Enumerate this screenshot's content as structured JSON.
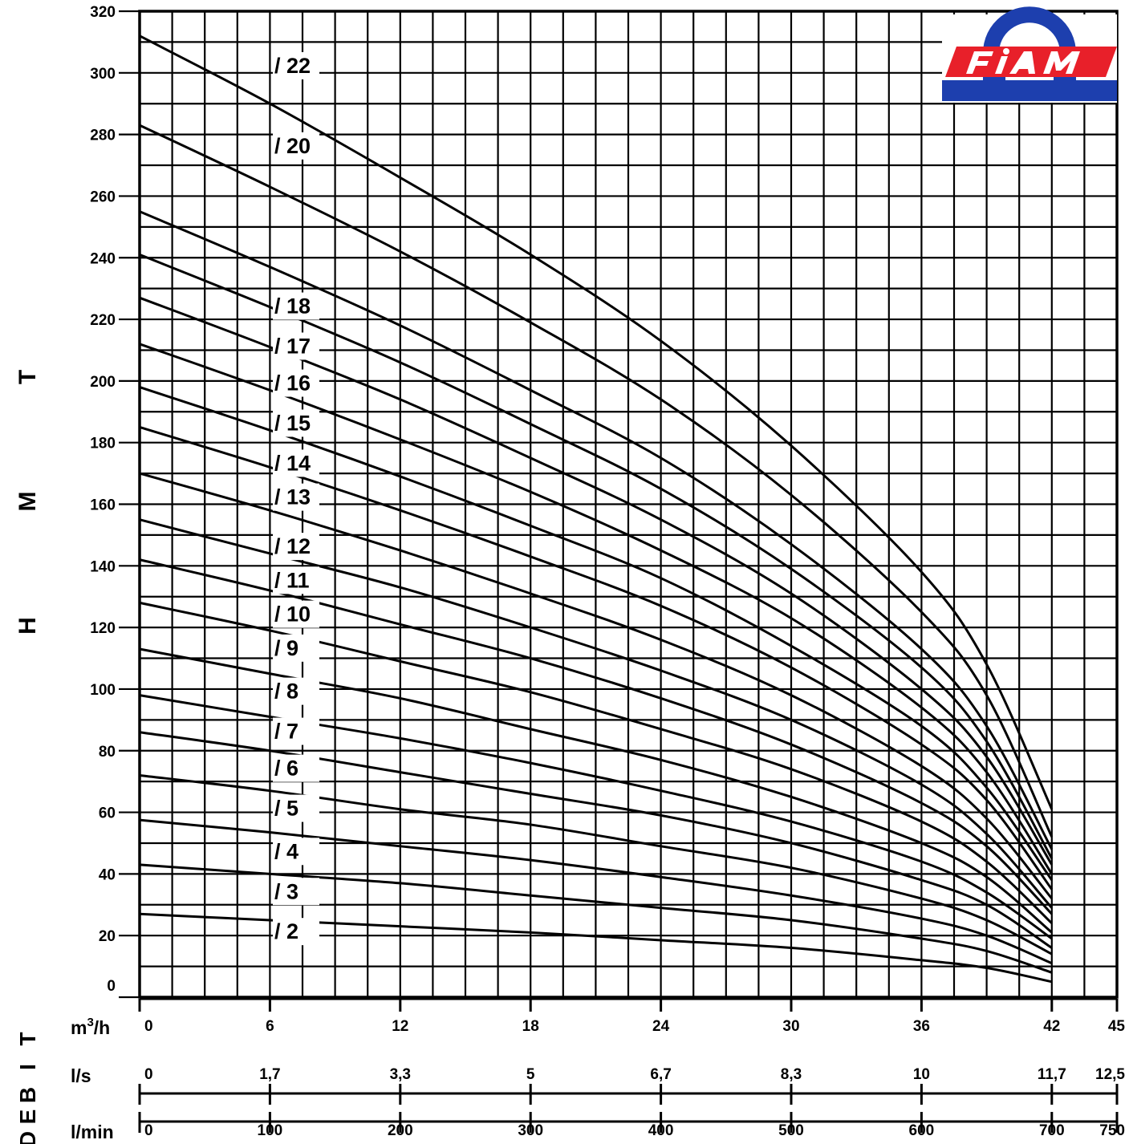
{
  "chart_data": {
    "type": "line",
    "title": "",
    "ylabel": "H  M  T",
    "xlabel": "D E B I T",
    "ylim": [
      0,
      320
    ],
    "xlim": [
      0,
      45
    ],
    "y_ticks": [
      "0",
      "20",
      "40",
      "60",
      "80",
      "100",
      "120",
      "140",
      "160",
      "180",
      "200",
      "220",
      "240",
      "260",
      "280",
      "300",
      "320"
    ],
    "x_axes": [
      {
        "unit": "m³/h",
        "unit_base": "m",
        "unit_sup": "3",
        "unit_tail": "/h",
        "ticks": [
          {
            "at": 0,
            "label": "0"
          },
          {
            "at": 6,
            "label": "6"
          },
          {
            "at": 12,
            "label": "12"
          },
          {
            "at": 18,
            "label": "18"
          },
          {
            "at": 24,
            "label": "24"
          },
          {
            "at": 30,
            "label": "30"
          },
          {
            "at": 36,
            "label": "36"
          },
          {
            "at": 42,
            "label": "42"
          },
          {
            "at": 45,
            "label": "45"
          }
        ]
      },
      {
        "unit": "l/s",
        "ticks": [
          {
            "at": 0,
            "label": "0"
          },
          {
            "at": 6,
            "label": "1,7"
          },
          {
            "at": 12,
            "label": "3,3"
          },
          {
            "at": 18,
            "label": "5"
          },
          {
            "at": 24,
            "label": "6,7"
          },
          {
            "at": 30,
            "label": "8,3"
          },
          {
            "at": 36,
            "label": "10"
          },
          {
            "at": 42,
            "label": "11,7"
          },
          {
            "at": 45,
            "label": "12,5"
          }
        ]
      },
      {
        "unit": "l/min",
        "ticks": [
          {
            "at": 0,
            "label": "0"
          },
          {
            "at": 6,
            "label": "100"
          },
          {
            "at": 12,
            "label": "200"
          },
          {
            "at": 18,
            "label": "300"
          },
          {
            "at": 24,
            "label": "400"
          },
          {
            "at": 30,
            "label": "500"
          },
          {
            "at": 36,
            "label": "600"
          },
          {
            "at": 42,
            "label": "700"
          },
          {
            "at": 45,
            "label": "750"
          }
        ]
      }
    ],
    "grid": true,
    "x": [
      0,
      6,
      12,
      18,
      24,
      30,
      36,
      39,
      42
    ],
    "series": [
      {
        "name": "/ 22",
        "values": [
          312,
          290,
          266,
          241,
          213,
          179,
          138,
          108,
          61
        ],
        "label_y": 301
      },
      {
        "name": "/ 20",
        "values": [
          283,
          263,
          242,
          219,
          194,
          163,
          125,
          98,
          52
        ],
        "label_y": 275
      },
      {
        "name": "/ 18",
        "values": [
          255,
          237,
          218,
          197,
          175,
          147,
          113,
          88,
          48
        ],
        "label_y": 223
      },
      {
        "name": "/ 17",
        "values": [
          241,
          224,
          206,
          186,
          165,
          139,
          107,
          83,
          45
        ],
        "label_y": 210
      },
      {
        "name": "/ 16",
        "values": [
          227,
          211,
          194,
          175,
          155,
          131,
          100,
          78,
          43
        ],
        "label_y": 198
      },
      {
        "name": "/ 15",
        "values": [
          212,
          197,
          181,
          164,
          145,
          123,
          94,
          73,
          40
        ],
        "label_y": 185
      },
      {
        "name": "/ 14",
        "values": [
          198,
          184,
          169,
          153,
          136,
          114,
          88,
          68,
          38
        ],
        "label_y": 172
      },
      {
        "name": "/ 13",
        "values": [
          185,
          172,
          158,
          143,
          127,
          107,
          82,
          64,
          35
        ],
        "label_y": 161
      },
      {
        "name": "/ 12",
        "values": [
          170,
          158,
          145,
          131,
          116,
          98,
          75,
          58,
          32
        ],
        "label_y": 145
      },
      {
        "name": "/ 11",
        "values": [
          155,
          144,
          133,
          120,
          106,
          90,
          69,
          53,
          29
        ],
        "label_y": 134
      },
      {
        "name": "/ 10",
        "values": [
          142,
          132,
          121,
          110,
          97,
          82,
          63,
          49,
          27
        ],
        "label_y": 123
      },
      {
        "name": "/ 9",
        "values": [
          128,
          119,
          109,
          99,
          87,
          74,
          57,
          44,
          24
        ],
        "label_y": 112
      },
      {
        "name": "/ 8",
        "values": [
          113,
          105,
          97,
          87,
          77,
          65,
          50,
          39,
          21
        ],
        "label_y": 98
      },
      {
        "name": "/ 7",
        "values": [
          98,
          91,
          84,
          76,
          67,
          57,
          44,
          34,
          19
        ],
        "label_y": 85
      },
      {
        "name": "/ 6",
        "values": [
          86,
          80,
          73,
          66,
          59,
          50,
          38,
          30,
          16
        ],
        "label_y": 73
      },
      {
        "name": "/ 5",
        "values": [
          72,
          67,
          61,
          56,
          49,
          42,
          32,
          25,
          14
        ],
        "label_y": 60
      },
      {
        "name": "/ 4",
        "values": [
          57.5,
          53.5,
          49,
          44.5,
          39,
          33,
          25.5,
          20,
          11
        ],
        "label_y": 46
      },
      {
        "name": "/ 3",
        "values": [
          43,
          40,
          37,
          33,
          29,
          25,
          19,
          15,
          8
        ],
        "label_y": 33
      },
      {
        "name": "/ 2",
        "values": [
          27,
          25,
          23,
          21,
          18.5,
          16,
          12,
          9.5,
          5
        ],
        "label_y": 20
      }
    ],
    "side_labels": {
      "y_letters": [
        "T",
        "M",
        "H"
      ],
      "x_letters": [
        "T",
        "I",
        "B",
        "E",
        "D"
      ]
    },
    "colors": {
      "lines": "#000000",
      "logo_red": "#e8202a",
      "logo_blue": "#1d3fae",
      "background": "#ffffff"
    },
    "logo": {
      "text": "FIAM"
    }
  }
}
